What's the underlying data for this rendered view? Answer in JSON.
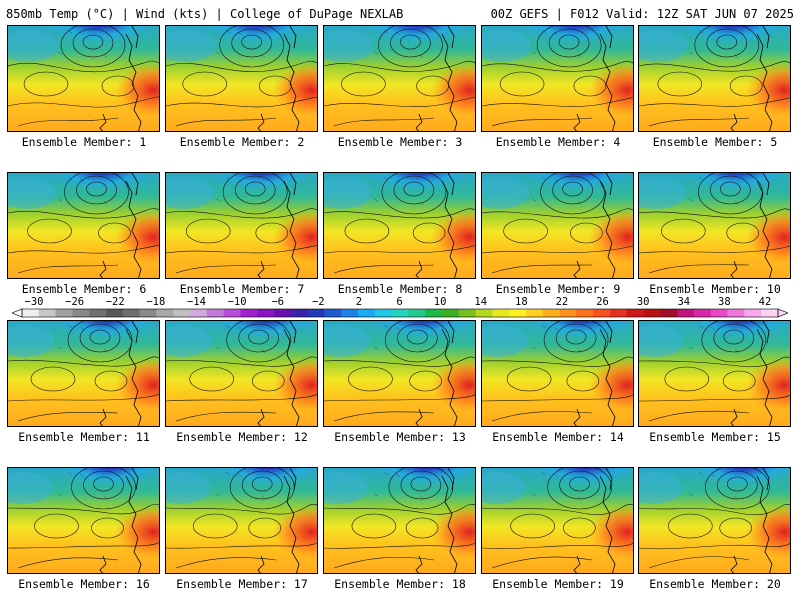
{
  "header": {
    "left": "850mb Temp (°C) | Wind (kts) | College of DuPage NEXLAB",
    "right": "00Z GEFS | F012 Valid: 12Z SAT JUN 07 2025"
  },
  "members": [
    "Ensemble Member: 1",
    "Ensemble Member: 2",
    "Ensemble Member: 3",
    "Ensemble Member: 4",
    "Ensemble Member: 5",
    "Ensemble Member: 6",
    "Ensemble Member: 7",
    "Ensemble Member: 8",
    "Ensemble Member: 9",
    "Ensemble Member: 10",
    "Ensemble Member: 11",
    "Ensemble Member: 12",
    "Ensemble Member: 13",
    "Ensemble Member: 14",
    "Ensemble Member: 15",
    "Ensemble Member: 16",
    "Ensemble Member: 17",
    "Ensemble Member: 18",
    "Ensemble Member: 19",
    "Ensemble Member: 20"
  ],
  "colorbar": {
    "labels": [
      "−30",
      "−26",
      "−22",
      "−18",
      "−14",
      "−10",
      "−6",
      "−2",
      "2",
      "6",
      "10",
      "14",
      "18",
      "22",
      "26",
      "30",
      "34",
      "38",
      "42"
    ],
    "colors": [
      "#efefef",
      "#c8c8c8",
      "#a0a0a0",
      "#888888",
      "#707070",
      "#585858",
      "#6e6e6e",
      "#8a8a8a",
      "#a8a8a8",
      "#c0c0c0",
      "#d2a8e0",
      "#c27ad8",
      "#b84ed6",
      "#a020d0",
      "#8a14c0",
      "#6a10b0",
      "#3c22a8",
      "#2238b8",
      "#1f5ad0",
      "#1e82e8",
      "#1eaaf0",
      "#20c8e8",
      "#22d4c0",
      "#22c890",
      "#20b848",
      "#40b020",
      "#78c020",
      "#b4d820",
      "#e8e820",
      "#fff020",
      "#ffd020",
      "#ffb01e",
      "#ff901e",
      "#ff701e",
      "#f85020",
      "#e83020",
      "#d01818",
      "#b81010",
      "#a00c28",
      "#c0147c",
      "#d828a8",
      "#e848c8",
      "#f078dc",
      "#f8a8ec",
      "#fcd0f4"
    ]
  }
}
